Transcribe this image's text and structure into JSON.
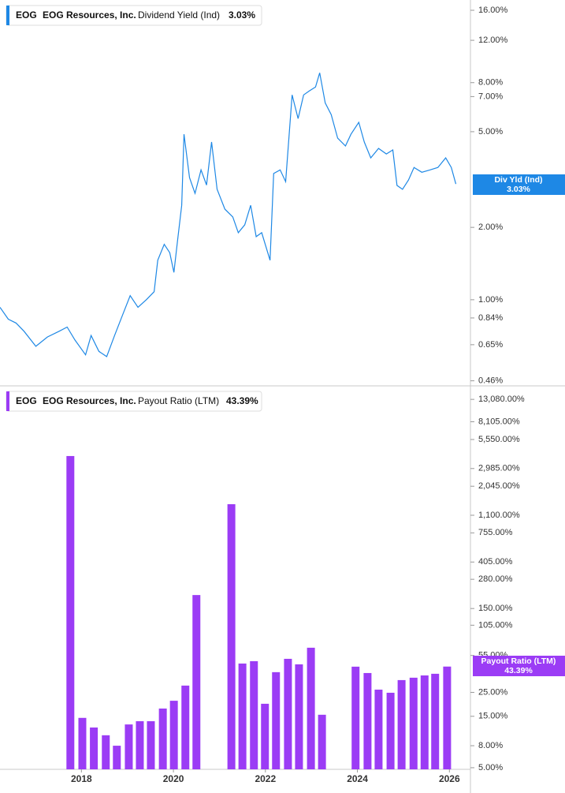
{
  "chart_data": [
    {
      "type": "line",
      "ticker": "EOG",
      "company": "EOG Resources, Inc.",
      "tag_label": "Div Yld (Ind)",
      "last_value_label": "3.03%",
      "log_scale": true,
      "grid": false,
      "xlim": [
        2016.23,
        2026.44
      ],
      "ylim": [
        0.445,
        17
      ],
      "yticks": [
        {
          "value": 16,
          "label": "16.00%"
        },
        {
          "value": 12,
          "label": "12.00%"
        },
        {
          "value": 8,
          "label": "8.00%"
        },
        {
          "value": 7,
          "label": "7.00%"
        },
        {
          "value": 5,
          "label": "5.00%"
        },
        {
          "value": 2,
          "label": "2.00%"
        },
        {
          "value": 1,
          "label": "1.00%"
        },
        {
          "value": 0.84,
          "label": "0.84%"
        },
        {
          "value": 0.65,
          "label": "0.65%"
        },
        {
          "value": 0.46,
          "label": "0.46%"
        }
      ],
      "x": [
        2016.23,
        2016.41,
        2016.58,
        2016.75,
        2017.01,
        2017.26,
        2017.52,
        2017.69,
        2017.86,
        2018.09,
        2018.21,
        2018.38,
        2018.55,
        2018.72,
        2018.89,
        2019.06,
        2019.23,
        2019.41,
        2019.58,
        2019.66,
        2019.8,
        2019.92,
        2020.01,
        2020.09,
        2020.18,
        2020.23,
        2020.35,
        2020.47,
        2020.6,
        2020.72,
        2020.83,
        2020.95,
        2021.12,
        2021.29,
        2021.41,
        2021.55,
        2021.68,
        2021.8,
        2021.92,
        2022.1,
        2022.18,
        2022.32,
        2022.44,
        2022.58,
        2022.71,
        2022.83,
        2022.95,
        2023.09,
        2023.18,
        2023.3,
        2023.43,
        2023.57,
        2023.74,
        2023.86,
        2024.03,
        2024.15,
        2024.29,
        2024.46,
        2024.63,
        2024.77,
        2024.86,
        2024.98,
        2025.11,
        2025.23,
        2025.4,
        2025.58,
        2025.75,
        2025.92,
        2026.04,
        2026.14
      ],
      "series": [
        {
          "name": "Dividend Yield (Ind)",
          "color": "#1e88e5",
          "values": [
            0.93,
            0.83,
            0.8,
            0.74,
            0.64,
            0.7,
            0.74,
            0.77,
            0.68,
            0.59,
            0.71,
            0.61,
            0.58,
            0.71,
            0.86,
            1.04,
            0.93,
            1.0,
            1.08,
            1.46,
            1.7,
            1.57,
            1.3,
            1.76,
            2.47,
            4.88,
            3.22,
            2.77,
            3.47,
            3.0,
            4.53,
            2.88,
            2.38,
            2.21,
            1.9,
            2.05,
            2.47,
            1.83,
            1.9,
            1.46,
            3.35,
            3.47,
            3.1,
            7.11,
            5.67,
            7.11,
            7.38,
            7.67,
            8.79,
            6.59,
            5.89,
            4.7,
            4.36,
            4.88,
            5.47,
            4.53,
            3.89,
            4.26,
            4.04,
            4.2,
            2.99,
            2.88,
            3.15,
            3.55,
            3.39,
            3.47,
            3.55,
            3.89,
            3.55,
            3.03
          ]
        }
      ]
    },
    {
      "type": "bar",
      "ticker": "EOG",
      "company": "EOG Resources, Inc.",
      "last_value_label": "43.39%",
      "log_scale": true,
      "grid": false,
      "xlim": [
        2016.23,
        2026.44
      ],
      "xticks": [
        2018,
        2020,
        2022,
        2024,
        2026
      ],
      "ylim": [
        4.83,
        15780
      ],
      "yticks": [
        {
          "value": 13080,
          "label": "13,080.00%"
        },
        {
          "value": 8105,
          "label": "8,105.00%"
        },
        {
          "value": 5550,
          "label": "5,550.00%"
        },
        {
          "value": 2985,
          "label": "2,985.00%"
        },
        {
          "value": 2045,
          "label": "2,045.00%"
        },
        {
          "value": 1100,
          "label": "1,100.00%"
        },
        {
          "value": 755,
          "label": "755.00%"
        },
        {
          "value": 405,
          "label": "405.00%"
        },
        {
          "value": 280,
          "label": "280.00%"
        },
        {
          "value": 150,
          "label": "150.00%"
        },
        {
          "value": 105,
          "label": "105.00%"
        },
        {
          "value": 55,
          "label": "55.00%"
        },
        {
          "value": 25,
          "label": "25.00%"
        },
        {
          "value": 15,
          "label": "15.00%"
        },
        {
          "value": 8,
          "label": "8.00%"
        },
        {
          "value": 5,
          "label": "5.00%"
        }
      ],
      "x": [
        2017.76,
        2018.02,
        2018.27,
        2018.53,
        2018.77,
        2019.03,
        2019.27,
        2019.51,
        2019.77,
        2020.01,
        2020.26,
        2020.5,
        2021.26,
        2021.5,
        2021.75,
        2021.99,
        2022.23,
        2022.49,
        2022.73,
        2022.99,
        2023.23,
        2023.96,
        2024.22,
        2024.46,
        2024.72,
        2024.96,
        2025.22,
        2025.46,
        2025.69,
        2025.95
      ],
      "series": [
        {
          "name": "Payout Ratio (LTM)",
          "color": "#9b3cf5",
          "values": [
            3898,
            14.5,
            11.8,
            10.0,
            8.0,
            12.6,
            13.5,
            13.5,
            17.7,
            20.9,
            28.9,
            200,
            1393,
            46.3,
            48.7,
            19.6,
            38.5,
            51.2,
            45.5,
            64.9,
            15.5,
            43.3,
            37.8,
            26.5,
            24.8,
            32.5,
            34.2,
            35.9,
            37.2,
            43.39
          ]
        }
      ]
    }
  ]
}
